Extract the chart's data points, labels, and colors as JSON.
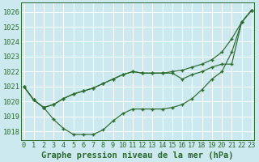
{
  "title": "",
  "xlabel": "Graphe pression niveau de la mer (hPa)",
  "bg_color": "#cce9f0",
  "grid_color": "#ffffff",
  "line_color": "#2d6a2d",
  "ylim": [
    1017.4,
    1026.6
  ],
  "xlim": [
    -0.3,
    23.3
  ],
  "yticks": [
    1018,
    1019,
    1020,
    1021,
    1022,
    1023,
    1024,
    1025,
    1026
  ],
  "xticks": [
    0,
    1,
    2,
    3,
    4,
    5,
    6,
    7,
    8,
    9,
    10,
    11,
    12,
    13,
    14,
    15,
    16,
    17,
    18,
    19,
    20,
    21,
    22,
    23
  ],
  "series": [
    [
      1021.0,
      1020.1,
      1019.6,
      1019.8,
      1020.2,
      1020.5,
      1020.7,
      1020.9,
      1021.2,
      1021.5,
      1021.8,
      1022.0,
      1021.9,
      1021.9,
      1021.9,
      1022.0,
      1022.1,
      1022.3,
      1022.5,
      1022.8,
      1023.3,
      1024.2,
      1025.3,
      1026.1
    ],
    [
      1021.0,
      1020.1,
      1019.6,
      1019.8,
      1020.2,
      1020.5,
      1020.7,
      1020.9,
      1021.2,
      1021.5,
      1021.8,
      1022.0,
      1021.9,
      1021.9,
      1021.9,
      1021.9,
      1021.5,
      1021.8,
      1022.0,
      1022.3,
      1022.5,
      1022.5,
      1025.3,
      1026.1
    ],
    [
      1021.0,
      1020.1,
      1019.6,
      1018.8,
      1018.2,
      1017.8,
      1017.8,
      1017.8,
      1018.1,
      1018.7,
      1019.2,
      1019.5,
      1019.5,
      1019.5,
      1019.5,
      1019.6,
      1019.8,
      1020.2,
      1020.8,
      1021.5,
      1022.0,
      1023.3,
      1025.3,
      1026.1
    ]
  ],
  "xlabel_fontsize": 7.5,
  "tick_fontsize": 6.2
}
